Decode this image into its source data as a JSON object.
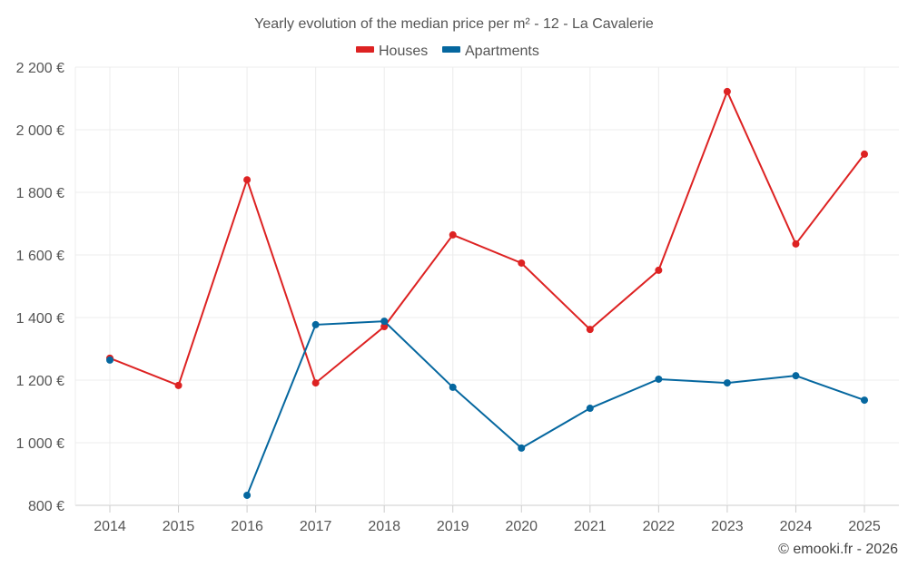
{
  "chart_data": {
    "type": "line",
    "title": "Yearly evolution of the median price per m² - 12 - La Cavalerie",
    "xlabel": "",
    "ylabel": "",
    "categories": [
      "2014",
      "2015",
      "2016",
      "2017",
      "2018",
      "2019",
      "2020",
      "2021",
      "2022",
      "2023",
      "2024",
      "2025"
    ],
    "ylim": [
      800,
      2200
    ],
    "yticks": [
      800,
      1000,
      1200,
      1400,
      1600,
      1800,
      2000,
      2200
    ],
    "ytick_labels": [
      "800 €",
      "1 000 €",
      "1 200 €",
      "1 400 €",
      "1 600 €",
      "1 800 €",
      "2 000 €",
      "2 200 €"
    ],
    "grid": true,
    "legend_position": "top-center",
    "series": [
      {
        "name": "Houses",
        "color": "#dd2222",
        "values": [
          1270,
          1183,
          1840,
          1191,
          1371,
          1664,
          1574,
          1362,
          1551,
          2122,
          1635,
          1922
        ]
      },
      {
        "name": "Apartments",
        "color": "#05679f",
        "values": [
          1264,
          null,
          832,
          1377,
          1388,
          1177,
          983,
          1110,
          1203,
          1191,
          1214,
          1136
        ]
      }
    ],
    "credit": "© emooki.fr - 2026"
  }
}
